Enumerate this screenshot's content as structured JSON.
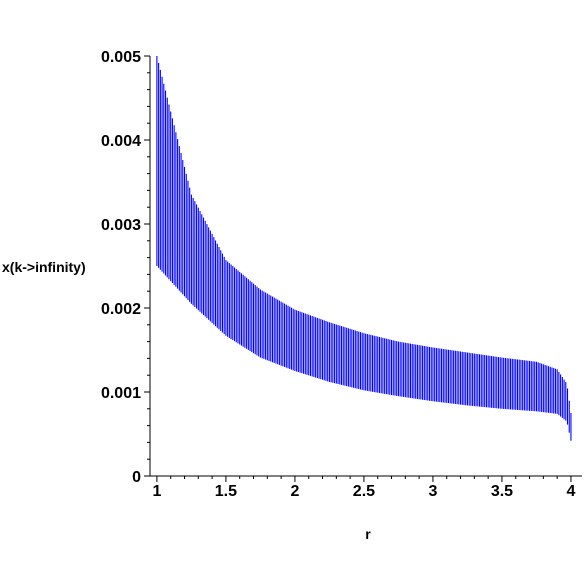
{
  "chart_data": {
    "type": "bar",
    "title": "",
    "xlabel": "r",
    "ylabel": "x(k->infinity)",
    "xlim": [
      0.95,
      4.08
    ],
    "ylim": [
      0,
      0.005
    ],
    "grid": false,
    "x_ticks": [
      "1",
      "1.5",
      "2",
      "2.5",
      "3",
      "3.5",
      "4"
    ],
    "y_ticks": [
      "0",
      "0.001",
      "0.002",
      "0.003",
      "0.004",
      "0.005"
    ],
    "color": "#0000ff",
    "x_start": 1.0,
    "x_end": 4.0,
    "x_step": 0.0125,
    "series": [
      {
        "values": [
          {
            "x": 1.0,
            "low": 0.0025,
            "high": 0.005
          },
          {
            "x": 1.25,
            "low": 0.00205,
            "high": 0.00335
          },
          {
            "x": 1.5,
            "low": 0.00167,
            "high": 0.00257
          },
          {
            "x": 1.75,
            "low": 0.00141,
            "high": 0.00222
          },
          {
            "x": 2.0,
            "low": 0.00125,
            "high": 0.00198
          },
          {
            "x": 2.25,
            "low": 0.00112,
            "high": 0.00183
          },
          {
            "x": 2.5,
            "low": 0.00102,
            "high": 0.0017
          },
          {
            "x": 2.75,
            "low": 0.00095,
            "high": 0.0016
          },
          {
            "x": 3.0,
            "low": 0.00089,
            "high": 0.00153
          },
          {
            "x": 3.25,
            "low": 0.00084,
            "high": 0.00147
          },
          {
            "x": 3.5,
            "low": 0.0008,
            "high": 0.00141
          },
          {
            "x": 3.75,
            "low": 0.00077,
            "high": 0.00136
          },
          {
            "x": 3.9,
            "low": 0.00074,
            "high": 0.00127
          },
          {
            "x": 3.97,
            "low": 0.00065,
            "high": 0.0011
          },
          {
            "x": 4.0,
            "low": 0.00042,
            "high": 0.00075
          }
        ]
      }
    ]
  }
}
